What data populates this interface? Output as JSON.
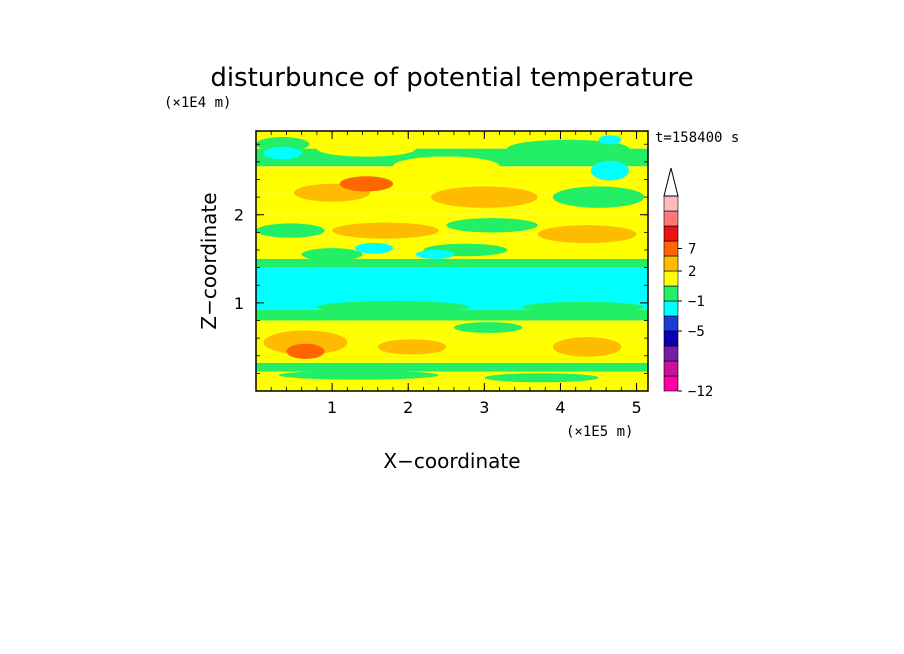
{
  "chart_data": {
    "type": "heatmap",
    "title": "disturbunce of potential temperature",
    "xlabel": "X−coordinate",
    "ylabel": "Z−coordinate",
    "x_unit": "(×1E5 m)",
    "y_unit": "(×1E4 m)",
    "time_label": "t=158400 s",
    "xlim": [
      0,
      5.15
    ],
    "ylim": [
      0,
      2.95
    ],
    "x_ticks": [
      "1",
      "2",
      "3",
      "4",
      "5"
    ],
    "x_tick_values": [
      1,
      2,
      3,
      4,
      5
    ],
    "y_ticks": [
      "1",
      "2"
    ],
    "y_tick_values": [
      1,
      2
    ],
    "colorbar": {
      "tick_labels": [
        "7",
        "2",
        "−1",
        "−5",
        "−12"
      ],
      "colors": [
        "#ff00aa",
        "#cc1199",
        "#7a1aa8",
        "#0a00b0",
        "#1a3cd8",
        "#00ffff",
        "#22ee66",
        "#ffff00",
        "#ffbb00",
        "#ff6600",
        "#ee1111",
        "#ff7777",
        "#ffbbbb"
      ],
      "extend": "max"
    },
    "bands": [
      {
        "z0": 0.0,
        "z1": 0.08,
        "color": "#ffff00"
      },
      {
        "z0": 0.08,
        "z1": 0.22,
        "color": "#ffff00"
      },
      {
        "z0": 0.22,
        "z1": 0.32,
        "color": "#22ee66"
      },
      {
        "z0": 0.32,
        "z1": 0.6,
        "color": "#ffff00"
      },
      {
        "z0": 0.6,
        "z1": 0.8,
        "color": "#ffff00"
      },
      {
        "z0": 0.8,
        "z1": 0.92,
        "color": "#22ee66"
      },
      {
        "z0": 0.92,
        "z1": 1.4,
        "color": "#00ffff"
      },
      {
        "z0": 1.4,
        "z1": 1.5,
        "color": "#22ee66"
      },
      {
        "z0": 1.5,
        "z1": 1.75,
        "color": "#ffff00"
      },
      {
        "z0": 1.75,
        "z1": 2.0,
        "color": "#ffff00"
      },
      {
        "z0": 2.0,
        "z1": 2.25,
        "color": "#ffff00"
      },
      {
        "z0": 2.25,
        "z1": 2.55,
        "color": "#ffff00"
      },
      {
        "z0": 2.55,
        "z1": 2.75,
        "color": "#22ee66"
      },
      {
        "z0": 2.75,
        "z1": 2.95,
        "color": "#ffff00"
      }
    ],
    "patches": [
      {
        "x": 0.1,
        "z": 0.55,
        "w": 1.1,
        "h": 0.25,
        "color": "#ffbb00"
      },
      {
        "x": 0.4,
        "z": 0.45,
        "w": 0.5,
        "h": 0.15,
        "color": "#ff6600"
      },
      {
        "x": 1.6,
        "z": 0.5,
        "w": 0.9,
        "h": 0.15,
        "color": "#ffbb00"
      },
      {
        "x": 3.9,
        "z": 0.5,
        "w": 0.9,
        "h": 0.2,
        "color": "#ffbb00"
      },
      {
        "x": 2.6,
        "z": 0.72,
        "w": 0.9,
        "h": 0.1,
        "color": "#22ee66"
      },
      {
        "x": 0.3,
        "z": 0.18,
        "w": 2.1,
        "h": 0.08,
        "color": "#22ee66"
      },
      {
        "x": 3.0,
        "z": 0.15,
        "w": 1.5,
        "h": 0.08,
        "color": "#22ee66"
      },
      {
        "x": 0.0,
        "z": 1.82,
        "w": 0.9,
        "h": 0.14,
        "color": "#22ee66"
      },
      {
        "x": 1.0,
        "z": 1.82,
        "w": 1.4,
        "h": 0.16,
        "color": "#ffbb00"
      },
      {
        "x": 2.5,
        "z": 1.88,
        "w": 1.2,
        "h": 0.14,
        "color": "#22ee66"
      },
      {
        "x": 3.7,
        "z": 1.78,
        "w": 1.3,
        "h": 0.18,
        "color": "#ffbb00"
      },
      {
        "x": 0.6,
        "z": 1.55,
        "w": 0.8,
        "h": 0.12,
        "color": "#22ee66"
      },
      {
        "x": 2.2,
        "z": 1.6,
        "w": 1.1,
        "h": 0.12,
        "color": "#22ee66"
      },
      {
        "x": 0.5,
        "z": 2.25,
        "w": 1.0,
        "h": 0.18,
        "color": "#ffbb00"
      },
      {
        "x": 1.1,
        "z": 2.35,
        "w": 0.7,
        "h": 0.15,
        "color": "#ff6600"
      },
      {
        "x": 2.3,
        "z": 2.2,
        "w": 1.4,
        "h": 0.22,
        "color": "#ffbb00"
      },
      {
        "x": 3.9,
        "z": 2.2,
        "w": 1.2,
        "h": 0.22,
        "color": "#22ee66"
      },
      {
        "x": 1.8,
        "z": 2.55,
        "w": 1.4,
        "h": 0.2,
        "color": "#ffff00"
      },
      {
        "x": 0.0,
        "z": 2.8,
        "w": 0.7,
        "h": 0.14,
        "color": "#22ee66"
      },
      {
        "x": 0.8,
        "z": 2.75,
        "w": 1.3,
        "h": 0.16,
        "color": "#ffff00"
      },
      {
        "x": 3.3,
        "z": 2.75,
        "w": 1.6,
        "h": 0.18,
        "color": "#22ee66"
      },
      {
        "x": 4.4,
        "z": 2.5,
        "w": 0.5,
        "h": 0.2,
        "color": "#00ffff"
      },
      {
        "x": 1.3,
        "z": 1.62,
        "w": 0.5,
        "h": 0.1,
        "color": "#00ffff"
      },
      {
        "x": 2.1,
        "z": 1.55,
        "w": 0.5,
        "h": 0.08,
        "color": "#00ffff"
      },
      {
        "x": 0.1,
        "z": 2.7,
        "w": 0.5,
        "h": 0.12,
        "color": "#00ffff"
      },
      {
        "x": 4.5,
        "z": 2.85,
        "w": 0.3,
        "h": 0.08,
        "color": "#00ffff"
      },
      {
        "x": 0.8,
        "z": 0.95,
        "w": 2.0,
        "h": 0.12,
        "color": "#22ee66"
      },
      {
        "x": 3.5,
        "z": 0.95,
        "w": 1.6,
        "h": 0.1,
        "color": "#22ee66"
      }
    ]
  }
}
